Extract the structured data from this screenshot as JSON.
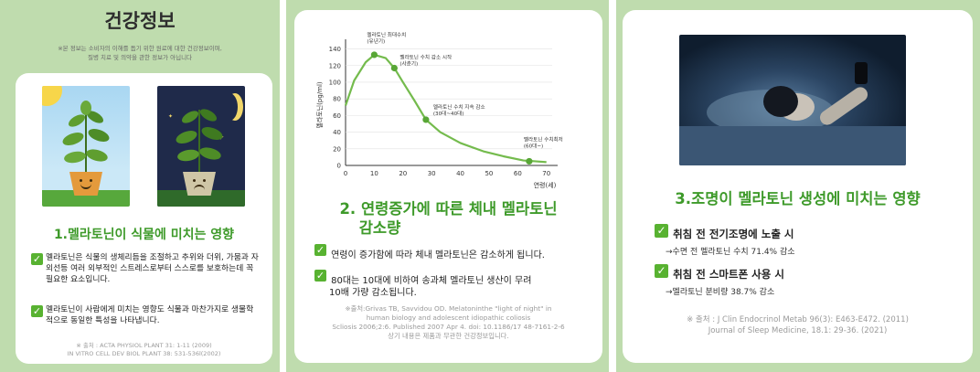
{
  "panel1": {
    "title": "건강정보",
    "disclaimer_line1": "※본 정보는 소비자의 이해를 돕기 위한 원료에 대한 건강정보이며,",
    "disclaimer_line2": "질병 치료 및 의약을 관한 정보가 아닙니다",
    "heading": "1.멜라토닌이 식물에 미치는 영향",
    "point1": "멜라토닌은 식물의 생체리듬을 조절하고 추위와 더위, 가뭄과 자외선등 여러 외부적인 스트레스로부터 스스로를 보호하는데 꼭 필요한 요소입니다.",
    "point2": "멜라토닌이 사람에게 미치는 영향도 식물과 마찬가지로 생물학적으로 동일한 특성을 나타냅니다.",
    "source_line1": "※ 출처 : ACTA PHYSIOL PLANT 31: 1-11 (2009)",
    "source_line2": "IN VITRO CELL DEV BIOL PLANT 38: 531-536l(2002)"
  },
  "panel2": {
    "heading_line1": "2. 연령증가에 따른 체내 멜라토닌",
    "heading_line2": "감소량",
    "point1": "연령이 증가함에 따라 체내 멜라토닌은 감소하게 됩니다.",
    "point2_line1": "80대는 10대에 비하여 송과체 멜라토닌 생산이 무려",
    "point2_line2": "10배 가량 감소됩니다.",
    "source_line1": "※출처:Grivas TB, Savvidou OD. Melatoninthe \"light of night\" in",
    "source_line2": "human biology and adolescent idiopathic coliosis",
    "source_line3": "Scliosis 2006;2:6. Published 2007 Apr 4. doi: 10.1186/17 48-7161-2-6",
    "source_line4": "상기 내용은 제품과 무관한 건강정보입니다."
  },
  "chart_data": {
    "type": "line",
    "ylabel": "멜라토닌(pg/ml)",
    "xlabel": "연령(세)",
    "x_ticks": [
      0,
      10,
      20,
      30,
      40,
      50,
      60,
      70
    ],
    "y_ticks": [
      0,
      20,
      40,
      60,
      80,
      100,
      120,
      140
    ],
    "xlim": [
      0,
      72
    ],
    "ylim": [
      0,
      145
    ],
    "series": [
      {
        "x": [
          0,
          3,
          7,
          10,
          14,
          17,
          20,
          24,
          28,
          33,
          40,
          48,
          55,
          62,
          66,
          70
        ],
        "y": [
          72,
          102,
          124,
          133,
          129,
          117,
          100,
          78,
          55,
          40,
          27,
          17,
          11,
          6,
          5,
          4
        ]
      }
    ],
    "annotations": [
      {
        "x": 10,
        "y": 133,
        "label": "멜라토닌 최대수치",
        "sublabel": "(유년기)"
      },
      {
        "x": 17,
        "y": 117,
        "label": "멜라토닌 수치 감소 시작",
        "sublabel": "(사춘기)"
      },
      {
        "x": 28,
        "y": 55,
        "label": "멜라토닌 수치 지속 감소",
        "sublabel": "(30대~40대)"
      },
      {
        "x": 64,
        "y": 5,
        "label": "멜라토닌 수치최저",
        "sublabel": "(60대~)"
      }
    ],
    "colors": {
      "line": "#74bb4d",
      "marker": "#58a636"
    }
  },
  "panel3": {
    "heading": "3.조명이 멜라토닌 생성에 미치는 영향",
    "item1_title": "취침 전 전기조명에 노출 시",
    "item1_detail": "→수면 전 멜라토닌 수치 71.4% 감소",
    "item2_title": "취침 전 스마트폰 사용 시",
    "item2_detail": "→멜라토닌 분비량 38.7% 감소",
    "source_line1": "※ 출처 : J Clin Endocrinol Metab 96(3): E463-E472. (2011)",
    "source_line2": "Journal of Sleep Medicine, 18.1: 29-36. (2021)"
  },
  "colors": {
    "panel_bg": "#bfdcae",
    "accent_green": "#3e9a2a",
    "check_green": "#58b231"
  },
  "icons": [
    "check-icon",
    "sun-icon",
    "moon-icon",
    "star-icon",
    "smiling-pot-icon",
    "sad-pot-icon"
  ]
}
